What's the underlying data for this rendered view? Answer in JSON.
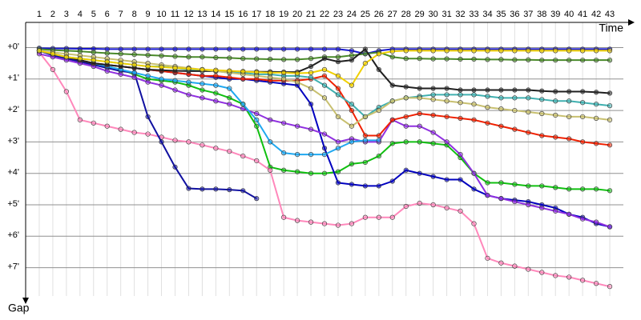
{
  "chart_data": {
    "type": "line",
    "x_label": "Time",
    "y_label": "Gap",
    "x": [
      1,
      2,
      3,
      4,
      5,
      6,
      7,
      8,
      9,
      10,
      11,
      12,
      13,
      14,
      15,
      16,
      17,
      18,
      19,
      20,
      21,
      22,
      23,
      24,
      25,
      26,
      27,
      28,
      29,
      30,
      31,
      32,
      33,
      34,
      35,
      36,
      37,
      38,
      39,
      40,
      41,
      42,
      43
    ],
    "xlim": [
      0,
      44
    ],
    "xticks": [
      1,
      2,
      3,
      4,
      5,
      6,
      7,
      8,
      9,
      10,
      11,
      12,
      13,
      14,
      15,
      16,
      17,
      18,
      19,
      20,
      21,
      22,
      23,
      24,
      25,
      26,
      27,
      28,
      29,
      30,
      31,
      32,
      33,
      34,
      35,
      36,
      37,
      38,
      39,
      40,
      41,
      42,
      43
    ],
    "ylim": [
      -0.8,
      7.9
    ],
    "yticks": [
      {
        "value": 0,
        "label": "+0'"
      },
      {
        "value": 1,
        "label": "+1'"
      },
      {
        "value": 2,
        "label": "+2'"
      },
      {
        "value": 3,
        "label": "+3'"
      },
      {
        "value": 4,
        "label": "+4'"
      },
      {
        "value": 5,
        "label": "+5'"
      },
      {
        "value": 6,
        "label": "+6'"
      },
      {
        "value": 7,
        "label": "+7'"
      }
    ],
    "y_inverted": true,
    "grid": true,
    "series": [
      {
        "color": "#1818d0",
        "values": [
          0.02,
          0.03,
          0.03,
          0.04,
          0.04,
          0.05,
          0.05,
          0.05,
          0.05,
          0.05,
          0.05,
          0.05,
          0.05,
          0.05,
          0.05,
          0.05,
          0.05,
          0.05,
          0.05,
          0.05,
          0.05,
          0.05,
          0.05,
          0.1,
          0.2,
          0.1,
          0.05,
          0.05,
          0.05,
          0.05,
          0.05,
          0.05,
          0.05,
          0.05,
          0.05,
          0.05,
          0.05,
          0.05,
          0.05,
          0.05,
          0.05,
          0.05,
          0.05
        ]
      },
      {
        "color": "#10c010",
        "values": [
          0.1,
          0.2,
          0.3,
          0.4,
          0.5,
          0.6,
          0.7,
          0.85,
          1.0,
          1.05,
          1.1,
          1.2,
          1.35,
          1.45,
          1.6,
          1.8,
          2.5,
          3.8,
          3.9,
          3.95,
          4.0,
          4.0,
          3.95,
          3.7,
          3.65,
          3.45,
          3.05,
          3.0,
          3.0,
          3.05,
          3.1,
          3.5,
          4.0,
          4.3,
          4.3,
          4.35,
          4.4,
          4.4,
          4.45,
          4.5,
          4.5,
          4.5,
          4.55
        ]
      },
      {
        "color": "#ff88bb",
        "values": [
          0.15,
          0.7,
          1.4,
          2.3,
          2.4,
          2.5,
          2.6,
          2.7,
          2.75,
          2.85,
          2.95,
          3.0,
          3.1,
          3.2,
          3.3,
          3.45,
          3.6,
          3.9,
          5.4,
          5.5,
          5.55,
          5.6,
          5.65,
          5.6,
          5.4,
          5.4,
          5.4,
          5.05,
          4.95,
          5.0,
          5.1,
          5.2,
          5.6,
          6.7,
          6.85,
          6.95,
          7.05,
          7.15,
          7.25,
          7.3,
          7.4,
          7.5,
          7.6
        ]
      },
      {
        "color": "#1010a0",
        "values": [
          0.1,
          0.25,
          0.35,
          0.45,
          0.55,
          0.65,
          0.75,
          0.8,
          2.2,
          3.0,
          3.8,
          4.48,
          4.5,
          4.5,
          4.52,
          4.55,
          4.8,
          null,
          null,
          null,
          null,
          null,
          null,
          null,
          null,
          null,
          null,
          null,
          null,
          null,
          null,
          null,
          null,
          null,
          null,
          null,
          null,
          null,
          null,
          null,
          null,
          null,
          null
        ]
      },
      {
        "color": "#0000c0",
        "values": [
          0.1,
          0.2,
          0.3,
          0.4,
          0.5,
          0.55,
          0.6,
          0.65,
          0.7,
          0.75,
          0.8,
          0.85,
          0.9,
          0.95,
          1.0,
          1.0,
          1.05,
          1.1,
          1.15,
          1.2,
          1.8,
          3.2,
          4.3,
          4.35,
          4.4,
          4.4,
          4.25,
          3.9,
          4.0,
          4.1,
          4.2,
          4.2,
          4.5,
          4.7,
          4.8,
          4.85,
          4.9,
          5.0,
          5.1,
          5.3,
          5.4,
          5.6,
          5.7
        ]
      },
      {
        "color": "#9030e0",
        "values": [
          0.2,
          0.3,
          0.4,
          0.5,
          0.6,
          0.75,
          0.85,
          0.95,
          1.1,
          1.2,
          1.35,
          1.5,
          1.6,
          1.7,
          1.8,
          1.95,
          2.1,
          2.3,
          2.4,
          2.5,
          2.6,
          2.75,
          3.0,
          2.9,
          3.0,
          3.0,
          2.3,
          2.5,
          2.5,
          2.7,
          3.0,
          3.4,
          4.0,
          4.7,
          4.8,
          4.9,
          5.0,
          5.1,
          5.2,
          5.3,
          5.45,
          5.55,
          5.7
        ]
      },
      {
        "color": "#20a8f0",
        "values": [
          0.1,
          0.2,
          0.3,
          0.4,
          0.5,
          0.6,
          0.7,
          0.8,
          0.9,
          1.0,
          1.05,
          1.1,
          1.15,
          1.2,
          1.3,
          1.8,
          2.3,
          3.0,
          3.35,
          3.4,
          3.4,
          3.4,
          3.2,
          3.0,
          2.95,
          2.95,
          null,
          null,
          null,
          null,
          null,
          null,
          null,
          null,
          null,
          null,
          null,
          null,
          null,
          null,
          null,
          null,
          null
        ]
      },
      {
        "color": "#f02000",
        "values": [
          0.1,
          0.2,
          0.3,
          0.4,
          0.5,
          0.55,
          0.6,
          0.65,
          0.7,
          0.75,
          0.8,
          0.85,
          0.9,
          0.9,
          0.95,
          1.0,
          1.0,
          1.05,
          1.05,
          1.05,
          1.0,
          0.9,
          1.3,
          2.0,
          2.8,
          2.8,
          2.3,
          2.2,
          2.1,
          2.15,
          2.2,
          2.25,
          2.3,
          2.4,
          2.5,
          2.6,
          2.7,
          2.8,
          2.85,
          2.9,
          3.0,
          3.05,
          3.1
        ]
      },
      {
        "color": "#4a8a2a",
        "values": [
          0.05,
          0.08,
          0.1,
          0.12,
          0.15,
          0.18,
          0.2,
          0.22,
          0.24,
          0.26,
          0.28,
          0.3,
          0.3,
          0.32,
          0.33,
          0.35,
          0.36,
          0.37,
          0.38,
          0.38,
          0.35,
          0.3,
          0.3,
          0.25,
          0.2,
          0.15,
          0.3,
          0.35,
          0.35,
          0.36,
          0.36,
          0.37,
          0.37,
          0.38,
          0.38,
          0.39,
          0.39,
          0.4,
          0.4,
          0.4,
          0.4,
          0.4,
          0.4
        ]
      },
      {
        "color": "#202020",
        "values": [
          0.1,
          0.2,
          0.3,
          0.4,
          0.5,
          0.55,
          0.6,
          0.65,
          0.7,
          0.72,
          0.74,
          0.75,
          0.75,
          0.75,
          0.76,
          0.76,
          0.77,
          0.77,
          0.78,
          0.78,
          0.6,
          0.35,
          0.45,
          0.4,
          0.05,
          0.7,
          1.2,
          1.25,
          1.3,
          1.3,
          1.3,
          1.35,
          1.35,
          1.35,
          1.35,
          1.35,
          1.35,
          1.38,
          1.4,
          1.4,
          1.4,
          1.42,
          1.45
        ]
      },
      {
        "color": "#40b0b0",
        "values": [
          0.1,
          0.2,
          0.3,
          0.35,
          0.4,
          0.45,
          0.5,
          0.55,
          0.6,
          0.6,
          0.65,
          0.7,
          0.7,
          0.75,
          0.8,
          0.8,
          0.85,
          0.85,
          0.9,
          0.9,
          0.95,
          1.2,
          1.5,
          1.8,
          2.2,
          1.9,
          1.7,
          1.6,
          1.55,
          1.5,
          1.5,
          1.5,
          1.5,
          1.55,
          1.6,
          1.6,
          1.6,
          1.65,
          1.7,
          1.7,
          1.75,
          1.8,
          1.85
        ]
      },
      {
        "color": "#c8c070",
        "values": [
          0.1,
          0.15,
          0.2,
          0.25,
          0.3,
          0.35,
          0.4,
          0.45,
          0.5,
          0.55,
          0.6,
          0.65,
          0.7,
          0.75,
          0.8,
          0.85,
          0.9,
          0.95,
          1.0,
          1.1,
          1.3,
          1.6,
          2.2,
          2.5,
          2.2,
          2.0,
          1.7,
          1.6,
          1.6,
          1.65,
          1.7,
          1.75,
          1.8,
          1.9,
          1.95,
          2.0,
          2.05,
          2.1,
          2.15,
          2.2,
          2.2,
          2.25,
          2.3
        ]
      },
      {
        "color": "#f0d000",
        "values": [
          0.1,
          0.2,
          0.3,
          0.35,
          0.4,
          0.45,
          0.5,
          0.55,
          0.6,
          0.62,
          0.65,
          0.67,
          0.7,
          0.72,
          0.74,
          0.76,
          0.78,
          0.8,
          0.8,
          0.82,
          0.8,
          0.7,
          0.9,
          1.2,
          0.5,
          0.2,
          0.12,
          0.1,
          0.1,
          0.1,
          0.1,
          0.1,
          0.1,
          0.1,
          0.1,
          0.1,
          0.1,
          0.1,
          0.1,
          0.1,
          0.1,
          0.1,
          0.1
        ]
      }
    ]
  }
}
